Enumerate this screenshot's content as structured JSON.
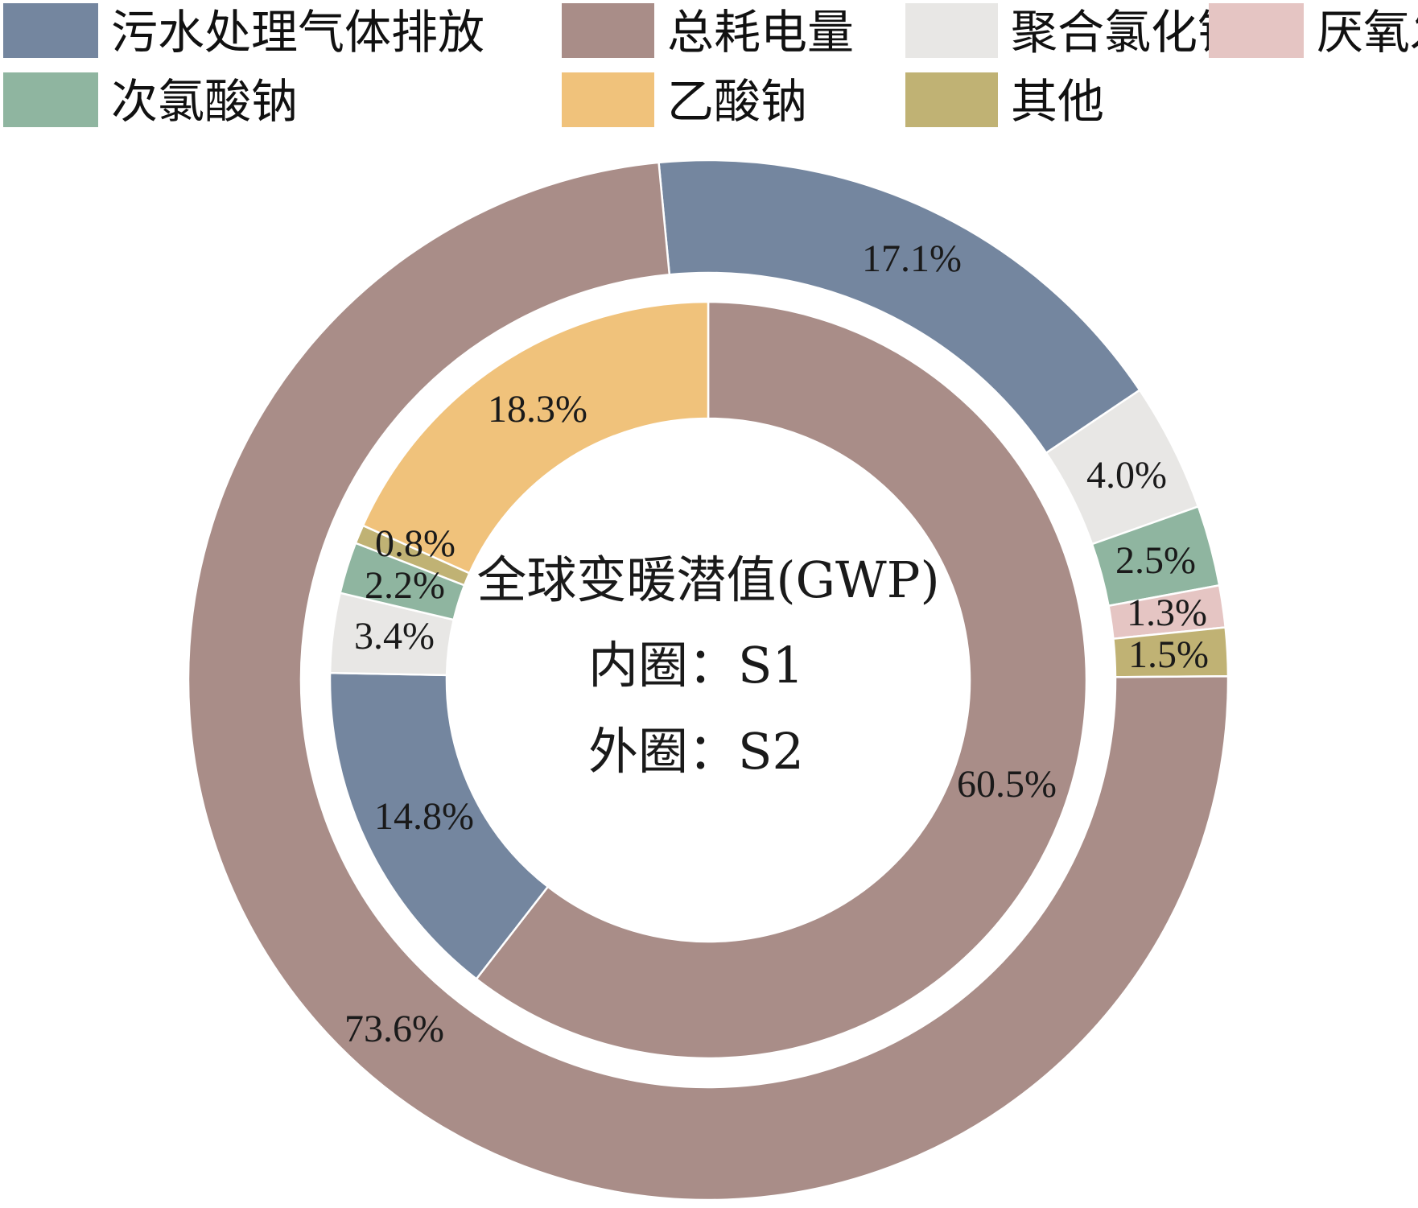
{
  "chart_data": {
    "type": "donut",
    "center_text": [
      "全球变暖潜值(GWP)",
      "内圈：S1",
      "外圈：S2"
    ],
    "legend": [
      {
        "key": "sewage",
        "label": "污水处理气体排放",
        "color": "#74869f"
      },
      {
        "key": "power",
        "label": "总耗电量",
        "color": "#a98d88"
      },
      {
        "key": "pac",
        "label": "聚合氯化铝",
        "color": "#e8e7e5"
      },
      {
        "key": "anaerobic",
        "label": "厌氧发酵气体排放",
        "color": "#e5c5c3"
      },
      {
        "key": "naclo",
        "label": "次氯酸钠",
        "color": "#8fb5a0"
      },
      {
        "key": "naac",
        "label": "乙酸钠",
        "color": "#f0c27b"
      },
      {
        "key": "other",
        "label": "其他",
        "color": "#c0b274"
      }
    ],
    "rings": [
      {
        "name": "S2",
        "ring": "outer",
        "slices": [
          {
            "key": "sewage",
            "value": 17.1,
            "label": "17.1%"
          },
          {
            "key": "pac",
            "value": 4.0,
            "label": "4.0%"
          },
          {
            "key": "naclo",
            "value": 2.5,
            "label": "2.5%"
          },
          {
            "key": "anaerobic",
            "value": 1.3,
            "label": "1.3%"
          },
          {
            "key": "other",
            "value": 1.5,
            "label": "1.5%"
          },
          {
            "key": "power",
            "value": 73.6,
            "label": "73.6%"
          }
        ]
      },
      {
        "name": "S1",
        "ring": "inner",
        "slices": [
          {
            "key": "power",
            "value": 60.5,
            "label": "60.5%"
          },
          {
            "key": "sewage",
            "value": 14.8,
            "label": "14.8%"
          },
          {
            "key": "pac",
            "value": 3.4,
            "label": "3.4%"
          },
          {
            "key": "naclo",
            "value": 2.2,
            "label": "2.2%"
          },
          {
            "key": "other",
            "value": 0.8,
            "label": "0.8%"
          },
          {
            "key": "naac",
            "value": 18.3,
            "label": "18.3%"
          }
        ]
      }
    ]
  }
}
